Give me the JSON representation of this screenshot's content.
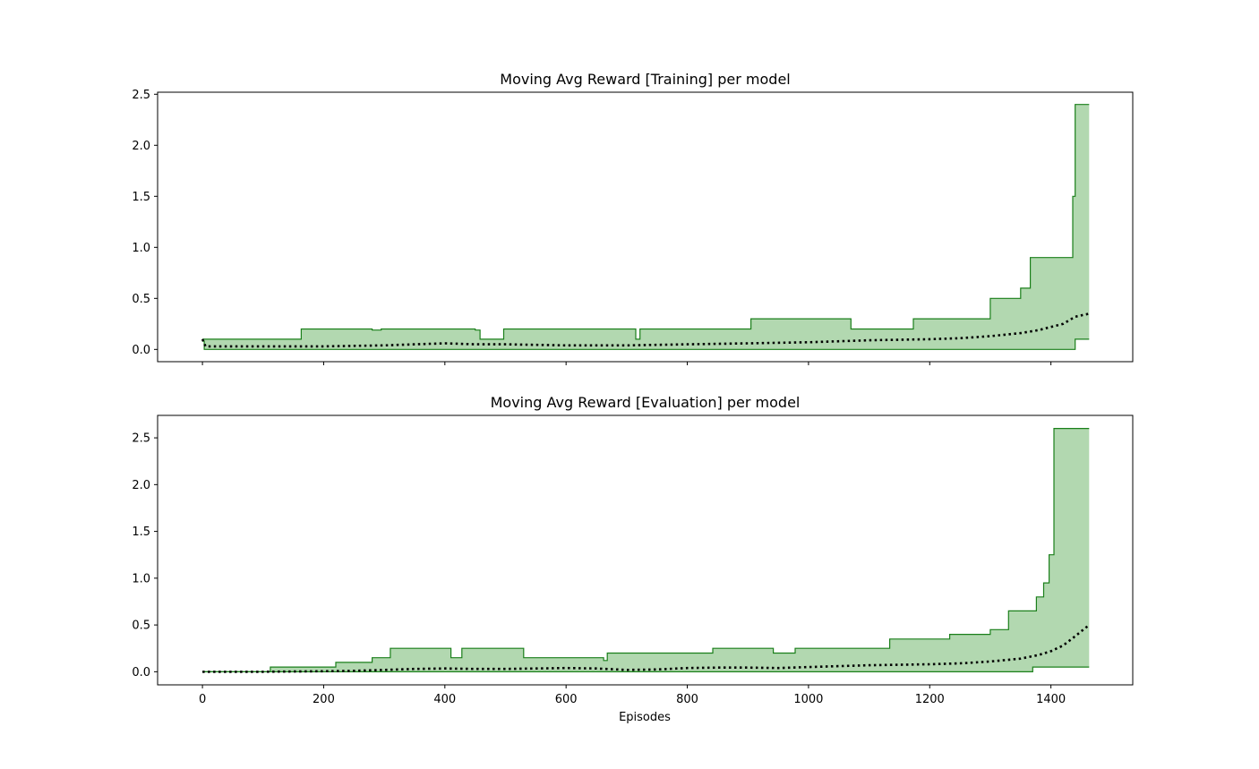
{
  "colors": {
    "band_fill": "#b2d8b0",
    "band_edge": "#1a7f1a",
    "mean_line": "#000000",
    "axes": "#000000"
  },
  "figure": {
    "xlabel": "Episodes"
  },
  "chart_data": [
    {
      "type": "area",
      "title": "Moving Avg Reward [Training] per model",
      "xlabel": "",
      "ylabel": "",
      "xlim": [
        -74,
        1535
      ],
      "ylim": [
        -0.12,
        2.52
      ],
      "xticks": [
        0,
        200,
        400,
        600,
        800,
        1000,
        1200,
        1400
      ],
      "show_xtick_labels": false,
      "yticks": [
        0.0,
        0.5,
        1.0,
        1.5,
        2.0,
        2.5
      ],
      "ytick_labels": [
        "0.0",
        "0.5",
        "1.0",
        "1.5",
        "2.0",
        "2.5"
      ],
      "grid": false,
      "series": [
        {
          "role": "max",
          "style": "step",
          "x": [
            0,
            3,
            163,
            280,
            295,
            450,
            458,
            497,
            715,
            722,
            905,
            1070,
            1173,
            1300,
            1350,
            1366,
            1436,
            1440,
            1463
          ],
          "values": [
            0.1,
            0.1,
            0.2,
            0.19,
            0.2,
            0.19,
            0.1,
            0.2,
            0.1,
            0.2,
            0.3,
            0.2,
            0.3,
            0.5,
            0.6,
            0.9,
            1.5,
            2.4,
            2.4
          ]
        },
        {
          "role": "min",
          "style": "step",
          "x": [
            0,
            3,
            1434,
            1440,
            1463
          ],
          "values": [
            0.08,
            0.0,
            0.0,
            0.1,
            0.1
          ]
        },
        {
          "role": "mean",
          "style": "dotted",
          "x": [
            0,
            5,
            100,
            200,
            300,
            350,
            400,
            450,
            500,
            600,
            700,
            800,
            900,
            1000,
            1100,
            1200,
            1250,
            1300,
            1350,
            1380,
            1400,
            1420,
            1440,
            1463
          ],
          "values": [
            0.1,
            0.03,
            0.03,
            0.03,
            0.04,
            0.05,
            0.06,
            0.05,
            0.05,
            0.04,
            0.04,
            0.05,
            0.06,
            0.07,
            0.09,
            0.1,
            0.11,
            0.13,
            0.16,
            0.19,
            0.22,
            0.25,
            0.32,
            0.35
          ]
        }
      ]
    },
    {
      "type": "area",
      "title": "Moving Avg Reward [Evaluation] per model",
      "xlabel": "Episodes",
      "ylabel": "",
      "xlim": [
        -74,
        1535
      ],
      "ylim": [
        -0.14,
        2.74
      ],
      "xticks": [
        0,
        200,
        400,
        600,
        800,
        1000,
        1200,
        1400
      ],
      "xtick_labels": [
        "0",
        "200",
        "400",
        "600",
        "800",
        "1000",
        "1200",
        "1400"
      ],
      "show_xtick_labels": true,
      "yticks": [
        0.0,
        0.5,
        1.0,
        1.5,
        2.0,
        2.5
      ],
      "ytick_labels": [
        "0.0",
        "0.5",
        "1.0",
        "1.5",
        "2.0",
        "2.5"
      ],
      "grid": false,
      "series": [
        {
          "role": "max",
          "style": "step",
          "x": [
            0,
            112,
            220,
            280,
            310,
            410,
            428,
            530,
            662,
            668,
            842,
            942,
            978,
            1134,
            1233,
            1300,
            1330,
            1376,
            1388,
            1397,
            1405,
            1463
          ],
          "values": [
            0.0,
            0.05,
            0.1,
            0.15,
            0.25,
            0.15,
            0.25,
            0.15,
            0.12,
            0.2,
            0.25,
            0.2,
            0.25,
            0.35,
            0.4,
            0.45,
            0.65,
            0.8,
            0.95,
            1.25,
            2.6,
            2.6
          ]
        },
        {
          "role": "min",
          "style": "step",
          "x": [
            0,
            1370,
            1463
          ],
          "values": [
            0.0,
            0.05,
            0.05
          ]
        },
        {
          "role": "mean",
          "style": "dotted",
          "x": [
            0,
            100,
            200,
            250,
            300,
            350,
            400,
            450,
            500,
            550,
            600,
            650,
            700,
            750,
            800,
            850,
            900,
            950,
            1000,
            1100,
            1200,
            1250,
            1300,
            1350,
            1380,
            1400,
            1420,
            1440,
            1463
          ],
          "values": [
            0.0,
            0.0,
            0.005,
            0.01,
            0.02,
            0.03,
            0.035,
            0.03,
            0.03,
            0.035,
            0.04,
            0.035,
            0.02,
            0.025,
            0.04,
            0.045,
            0.045,
            0.04,
            0.05,
            0.07,
            0.08,
            0.09,
            0.11,
            0.14,
            0.18,
            0.22,
            0.28,
            0.38,
            0.5
          ]
        }
      ]
    }
  ]
}
